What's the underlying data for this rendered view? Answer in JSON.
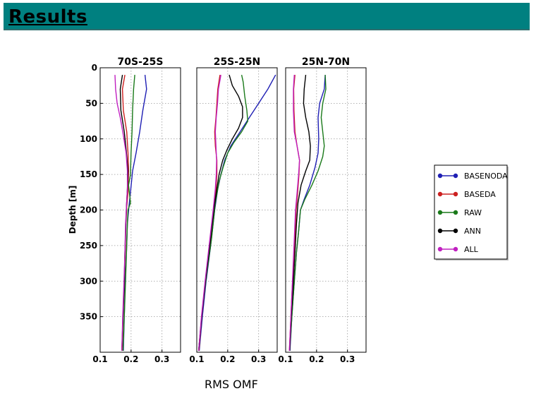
{
  "header": {
    "title": "Results"
  },
  "x_caption": "RMS OMF",
  "colors": {
    "header_bg": "#008080",
    "BASENODA": "#1f1fb4",
    "BASEDA": "#cc2020",
    "RAW": "#1a7a1a",
    "ANN": "#000000",
    "ALL": "#c020c0"
  },
  "chart_data": {
    "type": "line",
    "y_label": "Depth [m]",
    "y_range": [
      0,
      400
    ],
    "y_inverted": true,
    "y_ticks": [
      0,
      50,
      100,
      150,
      200,
      250,
      300,
      350
    ],
    "x_ticks": [
      0.1,
      0.2,
      0.3
    ],
    "grid": "dotted",
    "legend_position": "right",
    "legend": [
      "BASENODA",
      "BASEDA",
      "RAW",
      "ANN",
      "ALL"
    ],
    "panels": [
      {
        "title": "70S-25S",
        "x_range": [
          0.1,
          0.36
        ],
        "series": [
          {
            "name": "BASENODA",
            "points": [
              [
                0.245,
                10
              ],
              [
                0.25,
                30
              ],
              [
                0.238,
                60
              ],
              [
                0.228,
                90
              ],
              [
                0.216,
                120
              ],
              [
                0.205,
                145
              ],
              [
                0.198,
                175
              ],
              [
                0.193,
                195
              ],
              [
                0.188,
                220
              ],
              [
                0.185,
                260
              ],
              [
                0.181,
                300
              ],
              [
                0.178,
                350
              ],
              [
                0.175,
                398
              ]
            ]
          },
          {
            "name": "BASEDA",
            "points": [
              [
                0.18,
                10
              ],
              [
                0.172,
                30
              ],
              [
                0.175,
                60
              ],
              [
                0.186,
                90
              ],
              [
                0.19,
                120
              ],
              [
                0.192,
                145
              ],
              [
                0.19,
                175
              ],
              [
                0.186,
                195
              ],
              [
                0.183,
                220
              ],
              [
                0.181,
                260
              ],
              [
                0.178,
                300
              ],
              [
                0.174,
                350
              ],
              [
                0.171,
                398
              ]
            ]
          },
          {
            "name": "RAW",
            "points": [
              [
                0.212,
                10
              ],
              [
                0.208,
                30
              ],
              [
                0.205,
                60
              ],
              [
                0.203,
                90
              ],
              [
                0.2,
                120
              ],
              [
                0.198,
                150
              ],
              [
                0.192,
                165
              ],
              [
                0.198,
                190
              ],
              [
                0.19,
                200
              ],
              [
                0.188,
                220
              ],
              [
                0.185,
                260
              ],
              [
                0.182,
                300
              ],
              [
                0.178,
                350
              ],
              [
                0.174,
                398
              ]
            ]
          },
          {
            "name": "ANN",
            "points": [
              [
                0.172,
                10
              ],
              [
                0.165,
                30
              ],
              [
                0.167,
                60
              ],
              [
                0.178,
                90
              ],
              [
                0.185,
                120
              ],
              [
                0.19,
                145
              ],
              [
                0.188,
                170
              ],
              [
                0.185,
                195
              ],
              [
                0.183,
                220
              ],
              [
                0.18,
                260
              ],
              [
                0.178,
                300
              ],
              [
                0.174,
                350
              ],
              [
                0.17,
                398
              ]
            ]
          },
          {
            "name": "ALL",
            "points": [
              [
                0.148,
                10
              ],
              [
                0.15,
                30
              ],
              [
                0.155,
                50
              ],
              [
                0.165,
                70
              ],
              [
                0.175,
                95
              ],
              [
                0.184,
                120
              ],
              [
                0.188,
                145
              ],
              [
                0.188,
                170
              ],
              [
                0.185,
                195
              ],
              [
                0.182,
                220
              ],
              [
                0.18,
                260
              ],
              [
                0.177,
                300
              ],
              [
                0.173,
                350
              ],
              [
                0.17,
                398
              ]
            ]
          }
        ]
      },
      {
        "title": "25S-25N",
        "x_range": [
          0.1,
          0.36
        ],
        "series": [
          {
            "name": "BASENODA",
            "points": [
              [
                0.355,
                10
              ],
              [
                0.33,
                30
              ],
              [
                0.3,
                50
              ],
              [
                0.27,
                70
              ],
              [
                0.24,
                90
              ],
              [
                0.21,
                110
              ],
              [
                0.19,
                130
              ],
              [
                0.178,
                150
              ],
              [
                0.168,
                170
              ],
              [
                0.158,
                200
              ],
              [
                0.145,
                250
              ],
              [
                0.13,
                300
              ],
              [
                0.118,
                350
              ],
              [
                0.108,
                398
              ]
            ]
          },
          {
            "name": "BASEDA",
            "points": [
              [
                0.175,
                10
              ],
              [
                0.168,
                30
              ],
              [
                0.165,
                50
              ],
              [
                0.162,
                70
              ],
              [
                0.158,
                90
              ],
              [
                0.16,
                110
              ],
              [
                0.165,
                130
              ],
              [
                0.165,
                150
              ],
              [
                0.162,
                170
              ],
              [
                0.155,
                200
              ],
              [
                0.142,
                250
              ],
              [
                0.128,
                300
              ],
              [
                0.116,
                350
              ],
              [
                0.107,
                398
              ]
            ]
          },
          {
            "name": "RAW",
            "points": [
              [
                0.245,
                10
              ],
              [
                0.25,
                20
              ],
              [
                0.255,
                40
              ],
              [
                0.262,
                60
              ],
              [
                0.265,
                75
              ],
              [
                0.245,
                90
              ],
              [
                0.22,
                105
              ],
              [
                0.2,
                120
              ],
              [
                0.185,
                140
              ],
              [
                0.172,
                160
              ],
              [
                0.16,
                190
              ],
              [
                0.148,
                240
              ],
              [
                0.132,
                290
              ],
              [
                0.118,
                340
              ],
              [
                0.106,
                398
              ]
            ]
          },
          {
            "name": "ANN",
            "points": [
              [
                0.205,
                10
              ],
              [
                0.215,
                25
              ],
              [
                0.235,
                40
              ],
              [
                0.248,
                55
              ],
              [
                0.248,
                70
              ],
              [
                0.235,
                85
              ],
              [
                0.215,
                100
              ],
              [
                0.198,
                115
              ],
              [
                0.184,
                130
              ],
              [
                0.172,
                150
              ],
              [
                0.165,
                170
              ],
              [
                0.155,
                200
              ],
              [
                0.142,
                250
              ],
              [
                0.128,
                300
              ],
              [
                0.116,
                350
              ],
              [
                0.106,
                398
              ]
            ]
          },
          {
            "name": "ALL",
            "points": [
              [
                0.178,
                10
              ],
              [
                0.17,
                30
              ],
              [
                0.167,
                50
              ],
              [
                0.163,
                70
              ],
              [
                0.16,
                90
              ],
              [
                0.162,
                110
              ],
              [
                0.164,
                130
              ],
              [
                0.163,
                150
              ],
              [
                0.16,
                170
              ],
              [
                0.153,
                200
              ],
              [
                0.14,
                250
              ],
              [
                0.127,
                300
              ],
              [
                0.115,
                350
              ],
              [
                0.106,
                398
              ]
            ]
          }
        ]
      },
      {
        "title": "25N-70N",
        "x_range": [
          0.1,
          0.36
        ],
        "series": [
          {
            "name": "BASENODA",
            "points": [
              [
                0.228,
                10
              ],
              [
                0.225,
                30
              ],
              [
                0.21,
                50
              ],
              [
                0.205,
                70
              ],
              [
                0.207,
                100
              ],
              [
                0.205,
                120
              ],
              [
                0.195,
                140
              ],
              [
                0.178,
                165
              ],
              [
                0.16,
                185
              ],
              [
                0.148,
                200
              ],
              [
                0.142,
                230
              ],
              [
                0.135,
                260
              ],
              [
                0.128,
                300
              ],
              [
                0.12,
                350
              ],
              [
                0.114,
                398
              ]
            ]
          },
          {
            "name": "BASEDA",
            "points": [
              [
                0.13,
                10
              ],
              [
                0.126,
                30
              ],
              [
                0.127,
                60
              ],
              [
                0.13,
                90
              ],
              [
                0.137,
                110
              ],
              [
                0.145,
                130
              ],
              [
                0.143,
                150
              ],
              [
                0.138,
                180
              ],
              [
                0.134,
                200
              ],
              [
                0.13,
                240
              ],
              [
                0.125,
                280
              ],
              [
                0.12,
                320
              ],
              [
                0.116,
                360
              ],
              [
                0.112,
                398
              ]
            ]
          },
          {
            "name": "RAW",
            "points": [
              [
                0.228,
                10
              ],
              [
                0.23,
                30
              ],
              [
                0.22,
                50
              ],
              [
                0.215,
                70
              ],
              [
                0.22,
                90
              ],
              [
                0.225,
                110
              ],
              [
                0.22,
                125
              ],
              [
                0.205,
                145
              ],
              [
                0.185,
                165
              ],
              [
                0.162,
                185
              ],
              [
                0.148,
                200
              ],
              [
                0.142,
                230
              ],
              [
                0.135,
                260
              ],
              [
                0.128,
                300
              ],
              [
                0.12,
                350
              ],
              [
                0.113,
                398
              ]
            ]
          },
          {
            "name": "ANN",
            "points": [
              [
                0.165,
                10
              ],
              [
                0.16,
                30
              ],
              [
                0.158,
                50
              ],
              [
                0.165,
                70
              ],
              [
                0.175,
                90
              ],
              [
                0.18,
                110
              ],
              [
                0.178,
                130
              ],
              [
                0.165,
                145
              ],
              [
                0.15,
                165
              ],
              [
                0.14,
                190
              ],
              [
                0.135,
                220
              ],
              [
                0.13,
                260
              ],
              [
                0.125,
                300
              ],
              [
                0.118,
                350
              ],
              [
                0.113,
                398
              ]
            ]
          },
          {
            "name": "ALL",
            "points": [
              [
                0.128,
                10
              ],
              [
                0.125,
                30
              ],
              [
                0.125,
                60
              ],
              [
                0.128,
                90
              ],
              [
                0.137,
                110
              ],
              [
                0.145,
                130
              ],
              [
                0.142,
                150
              ],
              [
                0.136,
                180
              ],
              [
                0.132,
                200
              ],
              [
                0.128,
                240
              ],
              [
                0.124,
                280
              ],
              [
                0.12,
                320
              ],
              [
                0.116,
                360
              ],
              [
                0.112,
                398
              ]
            ]
          }
        ]
      }
    ]
  }
}
